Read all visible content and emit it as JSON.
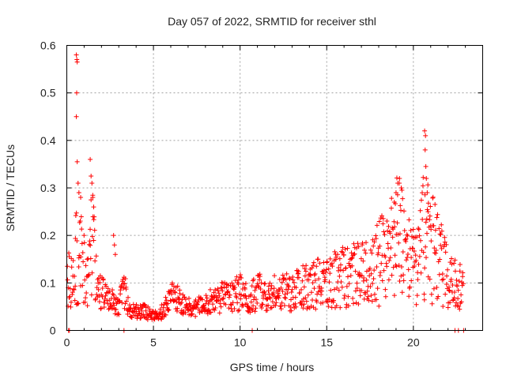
{
  "chart_data": {
    "type": "scatter",
    "title": "Day 057 of 2022, SRMTID for receiver sthl",
    "xlabel": "GPS time / hours",
    "ylabel": "SRMTID / TECUs",
    "xlim": [
      0,
      24
    ],
    "ylim": [
      0,
      0.6
    ],
    "xticks": [
      "0",
      "5",
      "10",
      "15",
      "20"
    ],
    "xtick_values": [
      0,
      5,
      10,
      15,
      20
    ],
    "yticks": [
      "0",
      "0.1",
      "0.2",
      "0.3",
      "0.4",
      "0.5",
      "0.6"
    ],
    "ytick_values": [
      0,
      0.1,
      0.2,
      0.3,
      0.4,
      0.5,
      0.6
    ],
    "grid": true,
    "marker": "+",
    "color": "#ff0000",
    "series": [
      {
        "name": "sthl",
        "trend": [
          [
            0.0,
            0.11
          ],
          [
            0.3,
            0.1
          ],
          [
            0.6,
            0.16
          ],
          [
            0.9,
            0.14
          ],
          [
            1.2,
            0.1
          ],
          [
            1.5,
            0.22
          ],
          [
            1.8,
            0.09
          ],
          [
            2.2,
            0.07
          ],
          [
            2.6,
            0.06
          ],
          [
            3.0,
            0.05
          ],
          [
            3.3,
            0.09
          ],
          [
            3.6,
            0.04
          ],
          [
            4.0,
            0.04
          ],
          [
            4.5,
            0.04
          ],
          [
            5.0,
            0.03
          ],
          [
            5.3,
            0.03
          ],
          [
            5.7,
            0.05
          ],
          [
            6.1,
            0.08
          ],
          [
            6.5,
            0.06
          ],
          [
            7.0,
            0.05
          ],
          [
            7.5,
            0.05
          ],
          [
            8.0,
            0.06
          ],
          [
            8.5,
            0.06
          ],
          [
            9.0,
            0.07
          ],
          [
            9.5,
            0.07
          ],
          [
            10.0,
            0.08
          ],
          [
            10.5,
            0.07
          ],
          [
            11.0,
            0.08
          ],
          [
            11.5,
            0.08
          ],
          [
            12.0,
            0.08
          ],
          [
            12.5,
            0.08
          ],
          [
            13.0,
            0.08
          ],
          [
            13.5,
            0.09
          ],
          [
            14.0,
            0.09
          ],
          [
            14.5,
            0.1
          ],
          [
            15.0,
            0.1
          ],
          [
            15.5,
            0.11
          ],
          [
            16.0,
            0.12
          ],
          [
            16.5,
            0.12
          ],
          [
            17.0,
            0.12
          ],
          [
            17.5,
            0.13
          ],
          [
            18.0,
            0.14
          ],
          [
            18.5,
            0.16
          ],
          [
            18.9,
            0.19
          ],
          [
            19.2,
            0.22
          ],
          [
            19.5,
            0.15
          ],
          [
            19.8,
            0.14
          ],
          [
            20.2,
            0.13
          ],
          [
            20.6,
            0.2
          ],
          [
            21.0,
            0.18
          ],
          [
            21.5,
            0.14
          ],
          [
            22.0,
            0.12
          ],
          [
            22.5,
            0.1
          ],
          [
            22.9,
            0.09
          ]
        ],
        "peaks": [
          [
            0.55,
            0.58
          ],
          [
            0.58,
            0.57
          ],
          [
            0.6,
            0.565
          ],
          [
            0.57,
            0.5
          ],
          [
            0.55,
            0.45
          ],
          [
            0.6,
            0.355
          ],
          [
            0.65,
            0.31
          ],
          [
            0.7,
            0.29
          ],
          [
            0.8,
            0.28
          ],
          [
            1.35,
            0.36
          ],
          [
            1.4,
            0.325
          ],
          [
            1.45,
            0.31
          ],
          [
            1.5,
            0.28
          ],
          [
            1.55,
            0.26
          ],
          [
            2.7,
            0.2
          ],
          [
            2.75,
            0.18
          ],
          [
            2.8,
            0.16
          ],
          [
            18.9,
            0.27
          ],
          [
            19.0,
            0.29
          ],
          [
            19.1,
            0.31
          ],
          [
            19.2,
            0.32
          ],
          [
            19.3,
            0.3
          ],
          [
            20.65,
            0.42
          ],
          [
            20.7,
            0.41
          ],
          [
            20.68,
            0.38
          ],
          [
            20.72,
            0.345
          ],
          [
            20.75,
            0.32
          ],
          [
            20.8,
            0.29
          ],
          [
            20.85,
            0.25
          ],
          [
            21.0,
            0.22
          ]
        ],
        "zeros": [
          0.1,
          0.15,
          3.3,
          10.7,
          22.4,
          22.6,
          22.9
        ]
      }
    ]
  }
}
